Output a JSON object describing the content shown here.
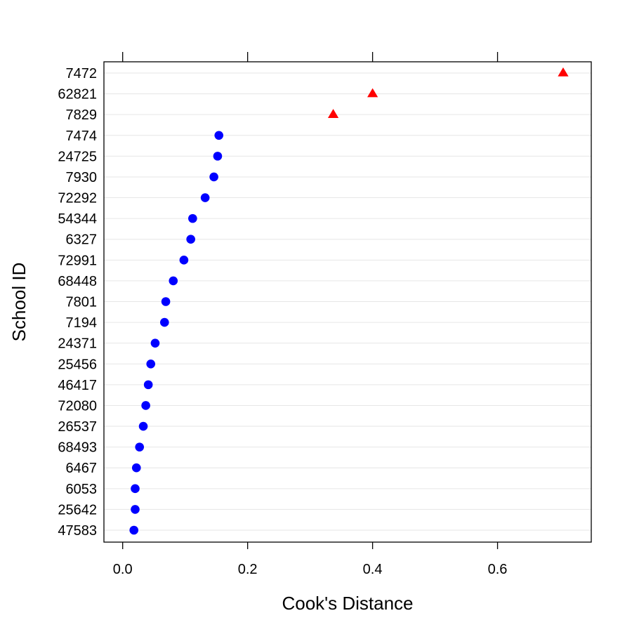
{
  "chart_data": {
    "type": "scatter",
    "title": "",
    "xlabel": "Cook's Distance",
    "ylabel": "School ID",
    "xlim": [
      -0.03,
      0.75
    ],
    "x_ticks": [
      0.0,
      0.2,
      0.4,
      0.6
    ],
    "x_tick_labels": [
      "0.0",
      "0.2",
      "0.4",
      "0.6"
    ],
    "grid": "horizontal",
    "legend": "none",
    "categories": [
      "7472",
      "62821",
      "7829",
      "7474",
      "24725",
      "7930",
      "72292",
      "54344",
      "6327",
      "72991",
      "68448",
      "7801",
      "7194",
      "24371",
      "25456",
      "46417",
      "72080",
      "26537",
      "68493",
      "6467",
      "6053",
      "25642",
      "47583"
    ],
    "series": [
      {
        "marker": "triangle",
        "color": "#ff0000",
        "points": [
          {
            "id": "7472",
            "value": 0.705
          },
          {
            "id": "62821",
            "value": 0.4
          },
          {
            "id": "7829",
            "value": 0.337
          }
        ]
      },
      {
        "marker": "circle",
        "color": "#0000ff",
        "points": [
          {
            "id": "7474",
            "value": 0.154
          },
          {
            "id": "24725",
            "value": 0.152
          },
          {
            "id": "7930",
            "value": 0.146
          },
          {
            "id": "72292",
            "value": 0.132
          },
          {
            "id": "54344",
            "value": 0.112
          },
          {
            "id": "6327",
            "value": 0.109
          },
          {
            "id": "72991",
            "value": 0.098
          },
          {
            "id": "68448",
            "value": 0.081
          },
          {
            "id": "7801",
            "value": 0.069
          },
          {
            "id": "7194",
            "value": 0.067
          },
          {
            "id": "24371",
            "value": 0.052
          },
          {
            "id": "25456",
            "value": 0.045
          },
          {
            "id": "46417",
            "value": 0.041
          },
          {
            "id": "72080",
            "value": 0.037
          },
          {
            "id": "26537",
            "value": 0.033
          },
          {
            "id": "68493",
            "value": 0.027
          },
          {
            "id": "6467",
            "value": 0.022
          },
          {
            "id": "6053",
            "value": 0.02
          },
          {
            "id": "25642",
            "value": 0.02
          },
          {
            "id": "47583",
            "value": 0.018
          }
        ]
      }
    ]
  }
}
